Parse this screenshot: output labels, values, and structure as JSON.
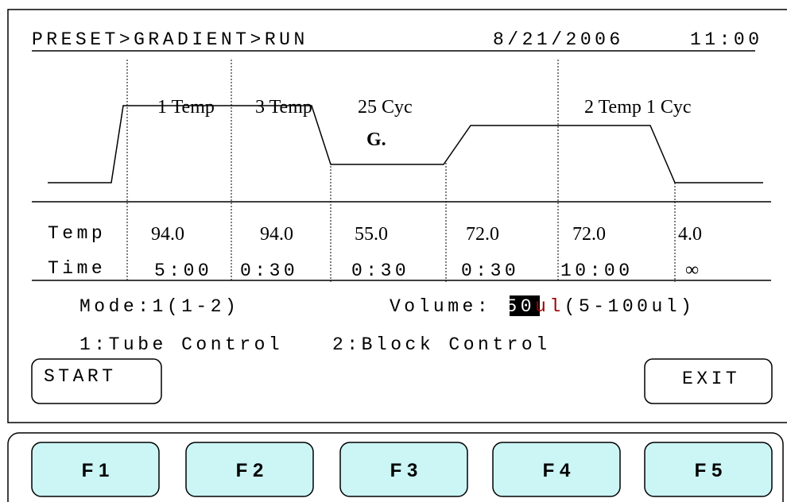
{
  "header": {
    "path": "PRESET>GRADIENT>RUN",
    "date": "8/21/2006",
    "time": "11:00"
  },
  "profile": {
    "labels": [
      "1 Temp",
      "3 Temp",
      "25 Cyc",
      "2 Temp 1 Cyc"
    ],
    "marker": "G."
  },
  "table": {
    "rows": [
      {
        "label": "Temp",
        "cells": [
          "94.0",
          "94.0",
          "55.0",
          "72.0",
          "72.0",
          "4.0"
        ]
      },
      {
        "label": "Time",
        "cells": [
          "5:00",
          "0:30",
          "0:30",
          "0:30",
          "10:00",
          "∞"
        ]
      }
    ]
  },
  "settings": {
    "mode": "Mode:1(1-2)",
    "volume_label": "Volume: ",
    "volume_value": "50",
    "volume_unit": "ul",
    "volume_range": "(5-100ul)"
  },
  "controls": [
    "1:Tube Control",
    "2:Block Control"
  ],
  "buttons": {
    "start": "START",
    "exit": "EXIT"
  },
  "function_keys": [
    "F 1",
    "F 2",
    "F 3",
    "F 4",
    "F 5"
  ]
}
